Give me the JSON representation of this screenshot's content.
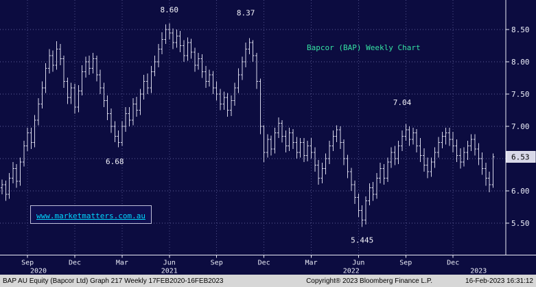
{
  "title": {
    "text": "Bapcor (BAP) Weekly Chart",
    "color": "#35e2a2"
  },
  "watermark": {
    "text": "www.marketmatters.com.au",
    "color": "#00d8ff"
  },
  "price_axis": {
    "labels": [
      {
        "text": "8.50",
        "value": 8.5
      },
      {
        "text": "8.00",
        "value": 8.0
      },
      {
        "text": "7.50",
        "value": 7.5
      },
      {
        "text": "7.00",
        "value": 7.0
      },
      {
        "text": "6.50",
        "value": 6.5
      },
      {
        "text": "6.00",
        "value": 6.0
      },
      {
        "text": "5.50",
        "value": 5.5
      }
    ],
    "last_price": {
      "text": "6.53",
      "value": 6.53
    }
  },
  "time_axis": {
    "month_ticks": [
      {
        "label": "Sep",
        "week": 7
      },
      {
        "label": "Dec",
        "week": 20
      },
      {
        "label": "Mar",
        "week": 33
      },
      {
        "label": "Jun",
        "week": 46
      },
      {
        "label": "Sep",
        "week": 59
      },
      {
        "label": "Dec",
        "week": 72
      },
      {
        "label": "Mar",
        "week": 85
      },
      {
        "label": "Jun",
        "week": 98
      },
      {
        "label": "Sep",
        "week": 111
      },
      {
        "label": "Dec",
        "week": 124
      }
    ],
    "year_ticks": [
      {
        "label": "2020",
        "week": 10
      },
      {
        "label": "2021",
        "week": 46
      },
      {
        "label": "2022",
        "week": 96
      },
      {
        "label": "2023",
        "week": 131
      }
    ]
  },
  "annotations": [
    {
      "text": "8.60",
      "week": 46,
      "price": 8.77
    },
    {
      "text": "8.37",
      "week": 67,
      "price": 8.72
    },
    {
      "text": "6.68",
      "week": 31,
      "price": 6.42
    },
    {
      "text": "7.04",
      "week": 110,
      "price": 7.33
    },
    {
      "text": "5.445",
      "week": 99,
      "price": 5.2
    }
  ],
  "status_bar": {
    "left": "BAP AU Equity (Bapcor Ltd) Graph 217  Weekly 17FEB2020-16FEB2023",
    "center": "Copyright® 2023 Bloomberg Finance L.P.",
    "right": "16-Feb-2023 16:31:12"
  },
  "chart_data": {
    "type": "ohlc-bar",
    "title": "Bapcor (BAP) Weekly Chart",
    "security": "BAP AU Equity (Bapcor Ltd)",
    "period": "Weekly",
    "range": "17FEB2020-16FEB2023",
    "ylim": [
      5.2,
      8.96
    ],
    "y_ticks": [
      5.5,
      6.0,
      6.5,
      7.0,
      7.5,
      8.0,
      8.5
    ],
    "grid": true,
    "last_close": 6.53,
    "annotated_points": {
      "high_jun_2021": 8.6,
      "high_nov_2021": 8.37,
      "low_feb_2021": 6.68,
      "high_sep_2022": 7.04,
      "low_jun_2022": 5.445
    },
    "open_rule": "open equals previous bar close",
    "open_first": 6.05,
    "bars_hlc": [
      [
        6.18,
        5.95,
        6.1
      ],
      [
        6.16,
        5.85,
        5.95
      ],
      [
        6.28,
        5.88,
        6.2
      ],
      [
        6.45,
        6.12,
        6.35
      ],
      [
        6.42,
        6.05,
        6.15
      ],
      [
        6.52,
        6.08,
        6.45
      ],
      [
        6.78,
        6.38,
        6.7
      ],
      [
        6.98,
        6.62,
        6.9
      ],
      [
        6.98,
        6.65,
        6.75
      ],
      [
        7.18,
        6.68,
        7.1
      ],
      [
        7.44,
        7.02,
        7.35
      ],
      [
        7.7,
        7.28,
        7.6
      ],
      [
        7.98,
        7.52,
        7.9
      ],
      [
        8.2,
        7.82,
        8.1
      ],
      [
        8.18,
        7.85,
        7.95
      ],
      [
        8.32,
        7.88,
        8.2
      ],
      [
        8.28,
        7.95,
        8.05
      ],
      [
        8.1,
        7.6,
        7.7
      ],
      [
        7.76,
        7.35,
        7.45
      ],
      [
        7.68,
        7.35,
        7.6
      ],
      [
        7.66,
        7.2,
        7.3
      ],
      [
        7.64,
        7.22,
        7.55
      ],
      [
        7.95,
        7.48,
        7.85
      ],
      [
        8.08,
        7.76,
        8.0
      ],
      [
        8.1,
        7.8,
        7.9
      ],
      [
        8.14,
        7.82,
        8.05
      ],
      [
        8.1,
        7.7,
        7.8
      ],
      [
        7.88,
        7.5,
        7.6
      ],
      [
        7.68,
        7.3,
        7.4
      ],
      [
        7.48,
        7.1,
        7.2
      ],
      [
        7.28,
        6.9,
        7.0
      ],
      [
        7.08,
        6.76,
        6.85
      ],
      [
        6.94,
        6.68,
        6.75
      ],
      [
        7.08,
        6.7,
        7.0
      ],
      [
        7.3,
        6.92,
        7.2
      ],
      [
        7.3,
        7.0,
        7.1
      ],
      [
        7.44,
        7.02,
        7.35
      ],
      [
        7.46,
        7.15,
        7.25
      ],
      [
        7.58,
        7.18,
        7.5
      ],
      [
        7.8,
        7.42,
        7.7
      ],
      [
        7.82,
        7.5,
        7.6
      ],
      [
        7.94,
        7.52,
        7.85
      ],
      [
        8.1,
        7.78,
        8.0
      ],
      [
        8.28,
        7.92,
        8.2
      ],
      [
        8.46,
        8.12,
        8.35
      ],
      [
        8.58,
        8.28,
        8.5
      ],
      [
        8.6,
        8.35,
        8.45
      ],
      [
        8.52,
        8.2,
        8.3
      ],
      [
        8.5,
        8.22,
        8.4
      ],
      [
        8.48,
        8.15,
        8.25
      ],
      [
        8.34,
        8.0,
        8.1
      ],
      [
        8.38,
        8.02,
        8.3
      ],
      [
        8.36,
        8.05,
        8.15
      ],
      [
        8.22,
        7.85,
        7.95
      ],
      [
        8.14,
        7.88,
        8.05
      ],
      [
        8.12,
        7.75,
        7.85
      ],
      [
        7.94,
        7.6,
        7.7
      ],
      [
        7.88,
        7.62,
        7.8
      ],
      [
        7.86,
        7.5,
        7.6
      ],
      [
        7.7,
        7.4,
        7.5
      ],
      [
        7.58,
        7.25,
        7.35
      ],
      [
        7.54,
        7.26,
        7.45
      ],
      [
        7.52,
        7.15,
        7.25
      ],
      [
        7.48,
        7.16,
        7.4
      ],
      [
        7.68,
        7.32,
        7.6
      ],
      [
        7.9,
        7.52,
        7.8
      ],
      [
        8.08,
        7.72,
        8.0
      ],
      [
        8.3,
        7.92,
        8.2
      ],
      [
        8.37,
        8.12,
        8.3
      ],
      [
        8.34,
        8.0,
        8.1
      ],
      [
        8.14,
        7.58,
        7.7
      ],
      [
        7.74,
        6.88,
        7.0
      ],
      [
        7.02,
        6.45,
        6.6
      ],
      [
        6.88,
        6.52,
        6.8
      ],
      [
        6.86,
        6.55,
        6.65
      ],
      [
        6.98,
        6.58,
        6.9
      ],
      [
        7.14,
        6.82,
        7.05
      ],
      [
        7.1,
        6.75,
        6.85
      ],
      [
        6.94,
        6.6,
        6.7
      ],
      [
        6.98,
        6.62,
        6.9
      ],
      [
        6.96,
        6.65,
        6.75
      ],
      [
        6.84,
        6.5,
        6.6
      ],
      [
        6.82,
        6.52,
        6.75
      ],
      [
        6.82,
        6.45,
        6.55
      ],
      [
        6.78,
        6.46,
        6.7
      ],
      [
        6.82,
        6.5,
        6.6
      ],
      [
        6.68,
        6.3,
        6.4
      ],
      [
        6.48,
        6.1,
        6.2
      ],
      [
        6.44,
        6.12,
        6.35
      ],
      [
        6.58,
        6.26,
        6.5
      ],
      [
        6.78,
        6.42,
        6.7
      ],
      [
        6.94,
        6.62,
        6.85
      ],
      [
        7.02,
        6.76,
        6.95
      ],
      [
        7.0,
        6.65,
        6.75
      ],
      [
        6.8,
        6.4,
        6.5
      ],
      [
        6.56,
        6.2,
        6.3
      ],
      [
        6.36,
        6.0,
        6.1
      ],
      [
        6.16,
        5.8,
        5.9
      ],
      [
        5.96,
        5.6,
        5.7
      ],
      [
        5.78,
        5.445,
        5.55
      ],
      [
        5.92,
        5.48,
        5.85
      ],
      [
        6.12,
        5.78,
        6.05
      ],
      [
        6.14,
        5.85,
        5.95
      ],
      [
        6.28,
        5.88,
        6.2
      ],
      [
        6.44,
        6.12,
        6.35
      ],
      [
        6.42,
        6.1,
        6.2
      ],
      [
        6.52,
        6.14,
        6.45
      ],
      [
        6.68,
        6.36,
        6.6
      ],
      [
        6.7,
        6.4,
        6.5
      ],
      [
        6.78,
        6.42,
        6.7
      ],
      [
        6.94,
        6.62,
        6.85
      ],
      [
        7.04,
        6.78,
        6.95
      ],
      [
        7.0,
        6.7,
        6.8
      ],
      [
        6.98,
        6.72,
        6.9
      ],
      [
        6.96,
        6.6,
        6.7
      ],
      [
        6.82,
        6.45,
        6.55
      ],
      [
        6.66,
        6.3,
        6.4
      ],
      [
        6.52,
        6.2,
        6.3
      ],
      [
        6.52,
        6.22,
        6.45
      ],
      [
        6.68,
        6.36,
        6.6
      ],
      [
        6.84,
        6.52,
        6.75
      ],
      [
        6.92,
        6.66,
        6.85
      ],
      [
        6.98,
        6.72,
        6.9
      ],
      [
        6.98,
        6.7,
        6.8
      ],
      [
        6.92,
        6.6,
        6.7
      ],
      [
        6.8,
        6.45,
        6.55
      ],
      [
        6.66,
        6.35,
        6.45
      ],
      [
        6.68,
        6.38,
        6.6
      ],
      [
        6.78,
        6.48,
        6.7
      ],
      [
        6.88,
        6.62,
        6.8
      ],
      [
        6.88,
        6.55,
        6.65
      ],
      [
        6.74,
        6.4,
        6.5
      ],
      [
        6.6,
        6.25,
        6.35
      ],
      [
        6.44,
        6.08,
        6.2
      ],
      [
        6.3,
        5.98,
        6.1
      ],
      [
        6.58,
        6.05,
        6.53
      ]
    ]
  }
}
